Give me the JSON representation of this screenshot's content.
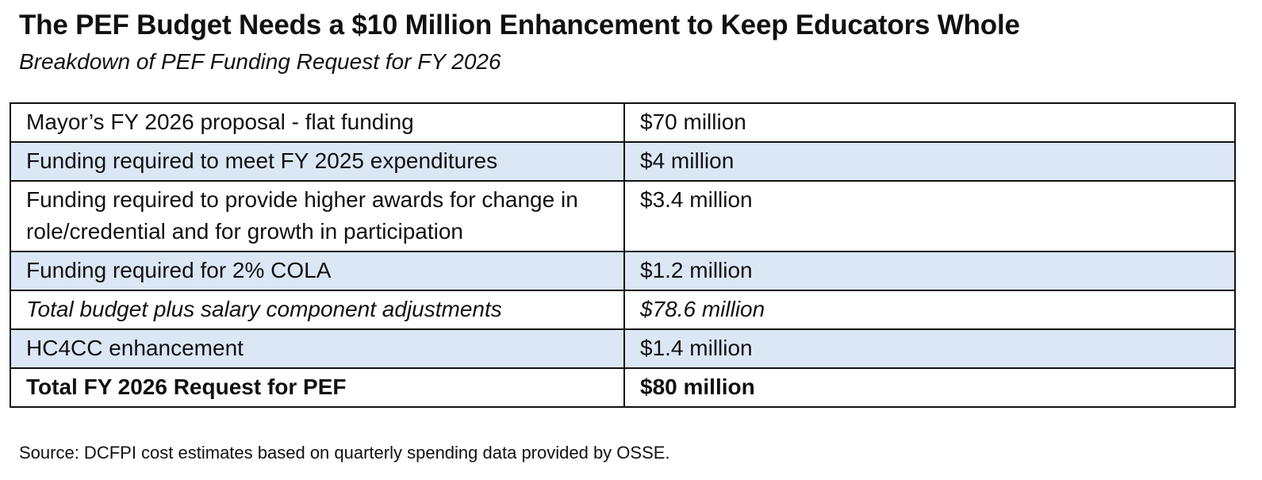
{
  "title": "The PEF Budget Needs a $10 Million Enhancement to Keep Educators Whole",
  "subtitle": "Breakdown of PEF Funding Request for FY 2026",
  "source": "Source: DCFPI cost estimates based on quarterly spending data provided by OSSE.",
  "colors": {
    "shaded_row": "#dce7f6",
    "border": "#111111",
    "text": "#111111"
  },
  "chart_data": {
    "type": "table",
    "title": "The PEF Budget Needs a $10 Million Enhancement to Keep Educators Whole",
    "subtitle": "Breakdown of PEF Funding Request for FY 2026",
    "rows": [
      {
        "label": "Mayor’s FY 2026 proposal - flat funding",
        "amount": "$70 million",
        "value_millions": 70,
        "shaded": false,
        "style": "normal"
      },
      {
        "label": "Funding required to meet FY 2025 expenditures",
        "amount": "$4 million",
        "value_millions": 4,
        "shaded": true,
        "style": "normal"
      },
      {
        "label": "Funding required to provide higher awards for change in role/credential and for growth in participation",
        "amount": "$3.4 million",
        "value_millions": 3.4,
        "shaded": false,
        "style": "normal"
      },
      {
        "label": "Funding required for 2% COLA",
        "amount": "$1.2 million",
        "value_millions": 1.2,
        "shaded": true,
        "style": "normal"
      },
      {
        "label": "Total budget plus salary component adjustments",
        "amount": "$78.6 million",
        "value_millions": 78.6,
        "shaded": false,
        "style": "italic"
      },
      {
        "label": "HC4CC enhancement",
        "amount": "$1.4 million",
        "value_millions": 1.4,
        "shaded": true,
        "style": "normal"
      },
      {
        "label": "Total FY 2026 Request for PEF",
        "amount": "$80 million",
        "value_millions": 80,
        "shaded": false,
        "style": "bold"
      }
    ]
  }
}
